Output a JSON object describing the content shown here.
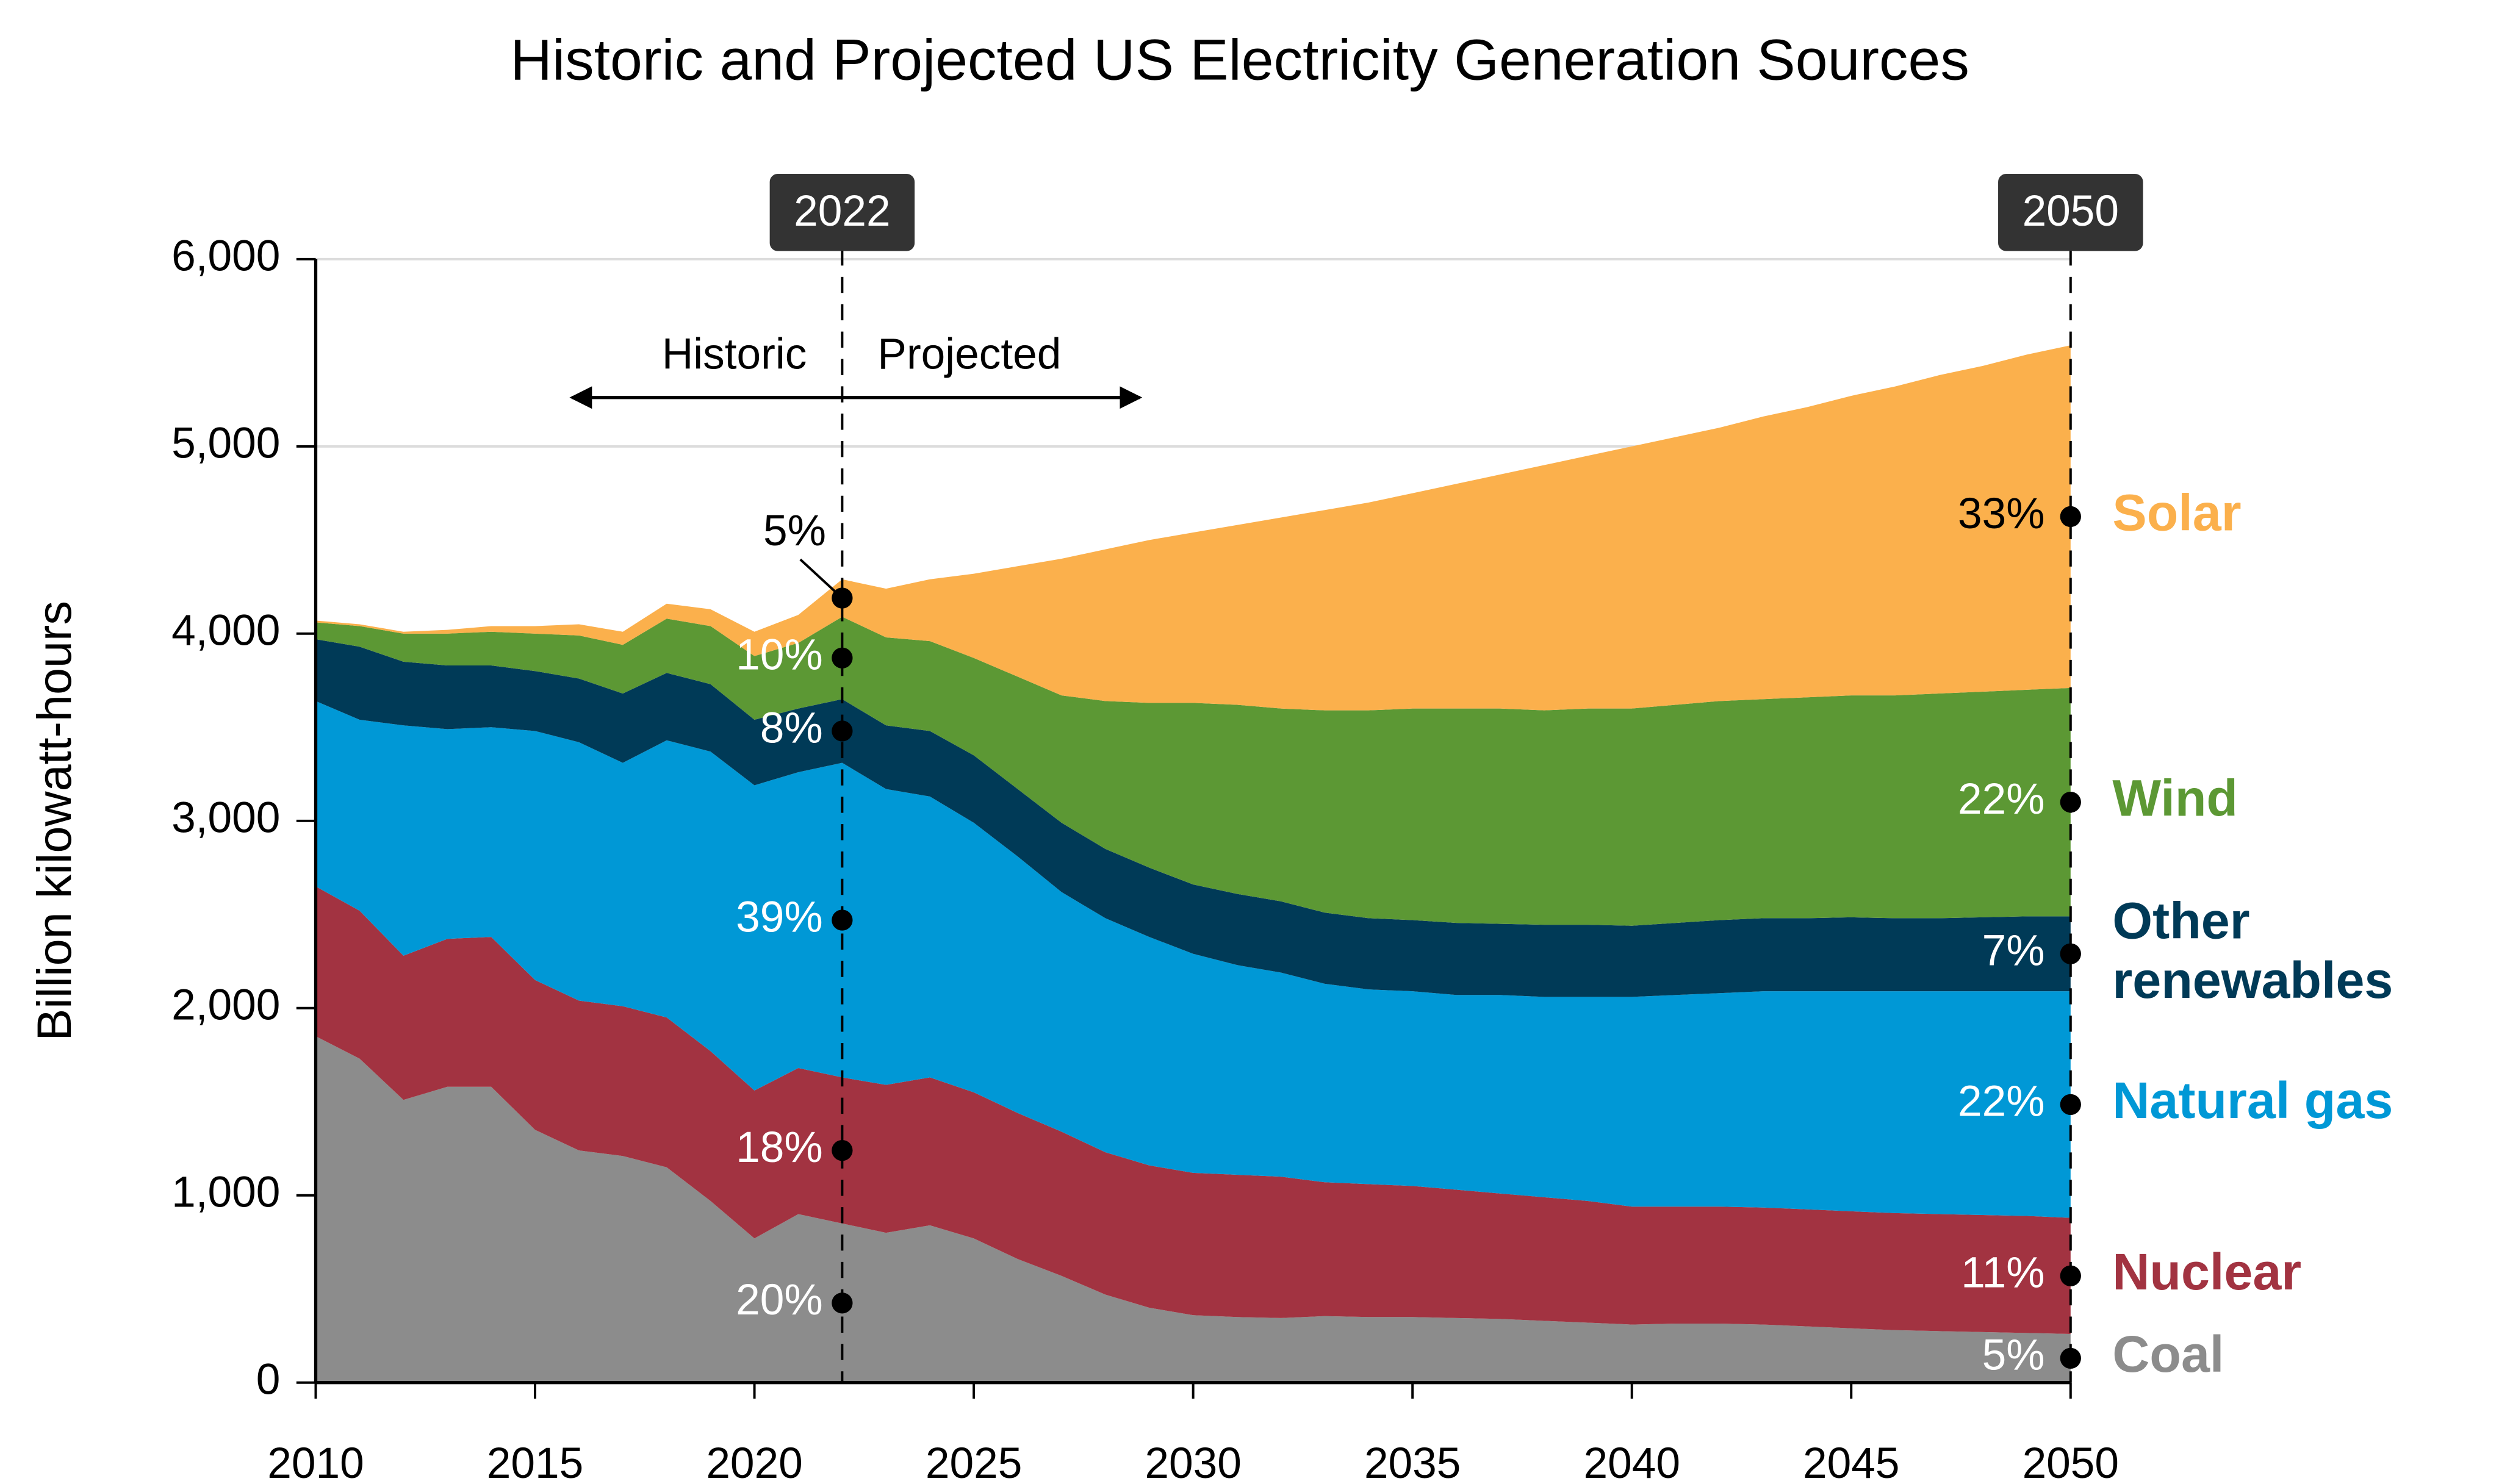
{
  "chart_data": {
    "type": "stacked-area",
    "title": "Historic and Projected US Electricity Generation Sources",
    "ylabel": "Billion kilowatt-hours",
    "x": [
      2010,
      2011,
      2012,
      2013,
      2014,
      2015,
      2016,
      2017,
      2018,
      2019,
      2020,
      2021,
      2022,
      2023,
      2024,
      2025,
      2026,
      2027,
      2028,
      2029,
      2030,
      2031,
      2032,
      2033,
      2034,
      2035,
      2036,
      2037,
      2038,
      2039,
      2040,
      2041,
      2042,
      2043,
      2044,
      2045,
      2046,
      2047,
      2048,
      2049,
      2050
    ],
    "xlim": [
      2010,
      2050
    ],
    "xticks": [
      2010,
      2015,
      2020,
      2025,
      2030,
      2035,
      2040,
      2045,
      2050
    ],
    "ylim": [
      0,
      6000
    ],
    "yticks": [
      0,
      {
        "value": 1000,
        "label": "1,000"
      },
      {
        "value": 2000,
        "label": "2,000"
      },
      {
        "value": 3000,
        "label": "3,000"
      },
      {
        "value": 4000,
        "label": "4,000"
      },
      {
        "value": 5000,
        "label": "5,000"
      },
      {
        "value": 6000,
        "label": "6,000"
      }
    ],
    "grid": true,
    "markers": [
      2022,
      2050
    ],
    "period_labels": [
      "Historic",
      "Projected"
    ],
    "series": [
      {
        "name": "Coal",
        "color": "#8c8c8c",
        "label_2022": "20%",
        "label_2050": "5%",
        "values": [
          1850,
          1730,
          1510,
          1580,
          1580,
          1350,
          1240,
          1210,
          1150,
          970,
          770,
          900,
          850,
          800,
          840,
          770,
          660,
          570,
          470,
          400,
          360,
          350,
          345,
          355,
          350,
          350,
          345,
          340,
          330,
          320,
          310,
          315,
          315,
          310,
          300,
          290,
          280,
          275,
          270,
          265,
          260
        ]
      },
      {
        "name": "Nuclear",
        "color": "#a23341",
        "label_2022": "18%",
        "label_2050": "11%",
        "values": [
          800,
          790,
          770,
          790,
          800,
          800,
          800,
          800,
          800,
          800,
          790,
          780,
          780,
          790,
          790,
          780,
          780,
          770,
          760,
          760,
          760,
          760,
          755,
          715,
          710,
          700,
          685,
          670,
          660,
          650,
          630,
          625,
          625,
          625,
          625,
          625,
          625,
          625,
          625,
          625,
          620
        ]
      },
      {
        "name": "Natural gas",
        "color": "#0098d6",
        "label_2022": "39%",
        "label_2050": "22%",
        "values": [
          990,
          1020,
          1230,
          1120,
          1120,
          1330,
          1380,
          1300,
          1480,
          1600,
          1630,
          1580,
          1680,
          1580,
          1500,
          1440,
          1370,
          1280,
          1250,
          1220,
          1170,
          1120,
          1090,
          1060,
          1040,
          1040,
          1040,
          1060,
          1070,
          1090,
          1120,
          1130,
          1140,
          1155,
          1165,
          1175,
          1185,
          1190,
          1195,
          1200,
          1210
        ]
      },
      {
        "name": "Other renewables",
        "color": "#003a57",
        "label_2022": "8%",
        "label_2050": "7%",
        "values": [
          330,
          390,
          340,
          340,
          330,
          320,
          340,
          370,
          360,
          360,
          350,
          340,
          340,
          340,
          350,
          360,
          360,
          370,
          370,
          370,
          370,
          380,
          380,
          380,
          380,
          380,
          385,
          380,
          385,
          385,
          380,
          385,
          390,
          390,
          390,
          395,
          390,
          390,
          395,
          400,
          400
        ]
      },
      {
        "name": "Wind",
        "color": "#5c9834",
        "label_2022": "10%",
        "label_2050": "22%",
        "values": [
          90,
          110,
          150,
          170,
          180,
          200,
          230,
          260,
          290,
          310,
          340,
          350,
          440,
          470,
          480,
          520,
          600,
          680,
          790,
          880,
          970,
          1010,
          1030,
          1080,
          1110,
          1130,
          1145,
          1150,
          1145,
          1155,
          1160,
          1165,
          1170,
          1170,
          1180,
          1185,
          1190,
          1200,
          1205,
          1210,
          1220
        ]
      },
      {
        "name": "Solar",
        "color": "#fbb04c",
        "label_2022": "5%",
        "label_2050": "33%",
        "values": [
          10,
          10,
          10,
          20,
          30,
          40,
          60,
          70,
          80,
          90,
          130,
          150,
          200,
          260,
          330,
          450,
          590,
          730,
          810,
          870,
          910,
          960,
          1020,
          1070,
          1110,
          1150,
          1200,
          1250,
          1310,
          1350,
          1400,
          1430,
          1460,
          1510,
          1550,
          1600,
          1650,
          1700,
          1740,
          1790,
          1830
        ]
      }
    ]
  }
}
